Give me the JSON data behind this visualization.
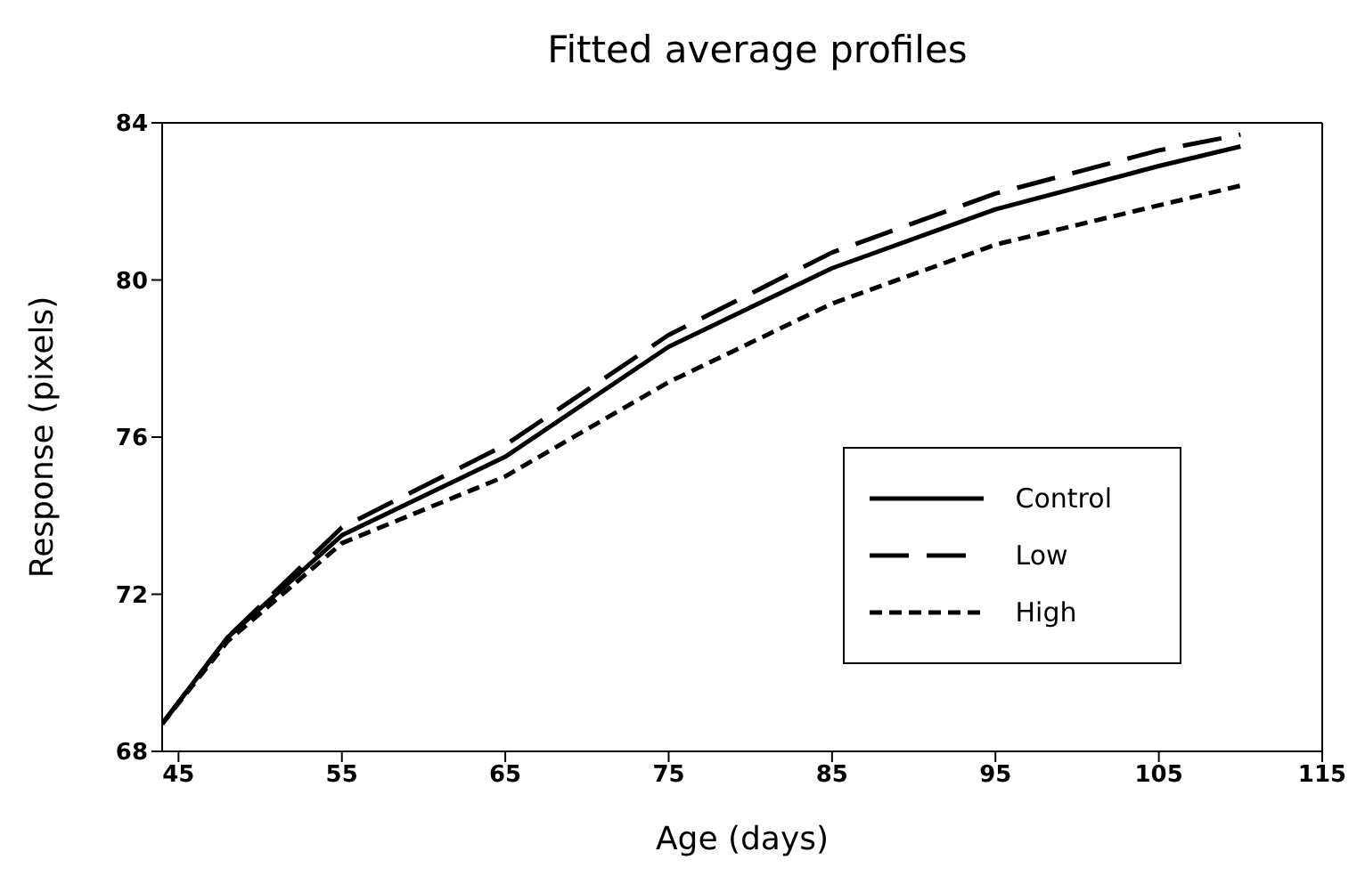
{
  "chart_data": {
    "type": "line",
    "title": "Fitted average profiles",
    "xlabel": "Age (days)",
    "ylabel": "Response (pixels)",
    "x": [
      44,
      48,
      55,
      65,
      75,
      85,
      95,
      105,
      110
    ],
    "xlim": [
      44,
      115
    ],
    "xticks": [
      45,
      55,
      65,
      75,
      85,
      95,
      105,
      115
    ],
    "ylim": [
      68,
      84
    ],
    "yticks": [
      68,
      72,
      76,
      80,
      84
    ],
    "grid": false,
    "legend": "right",
    "marker": "none",
    "series": [
      {
        "name": "Control",
        "color": "#000000",
        "line_style": "solid",
        "values": [
          68.7,
          70.9,
          73.5,
          75.5,
          78.3,
          80.3,
          81.8,
          82.9,
          83.4
        ]
      },
      {
        "name": "Low",
        "color": "#000000",
        "line_style": "dashed",
        "values": [
          68.7,
          70.9,
          73.7,
          75.8,
          78.6,
          80.7,
          82.2,
          83.3,
          83.7
        ]
      },
      {
        "name": "High",
        "color": "#000000",
        "line_style": "dotted",
        "values": [
          68.7,
          70.8,
          73.3,
          75.0,
          77.4,
          79.4,
          80.9,
          81.9,
          82.4
        ]
      }
    ]
  }
}
